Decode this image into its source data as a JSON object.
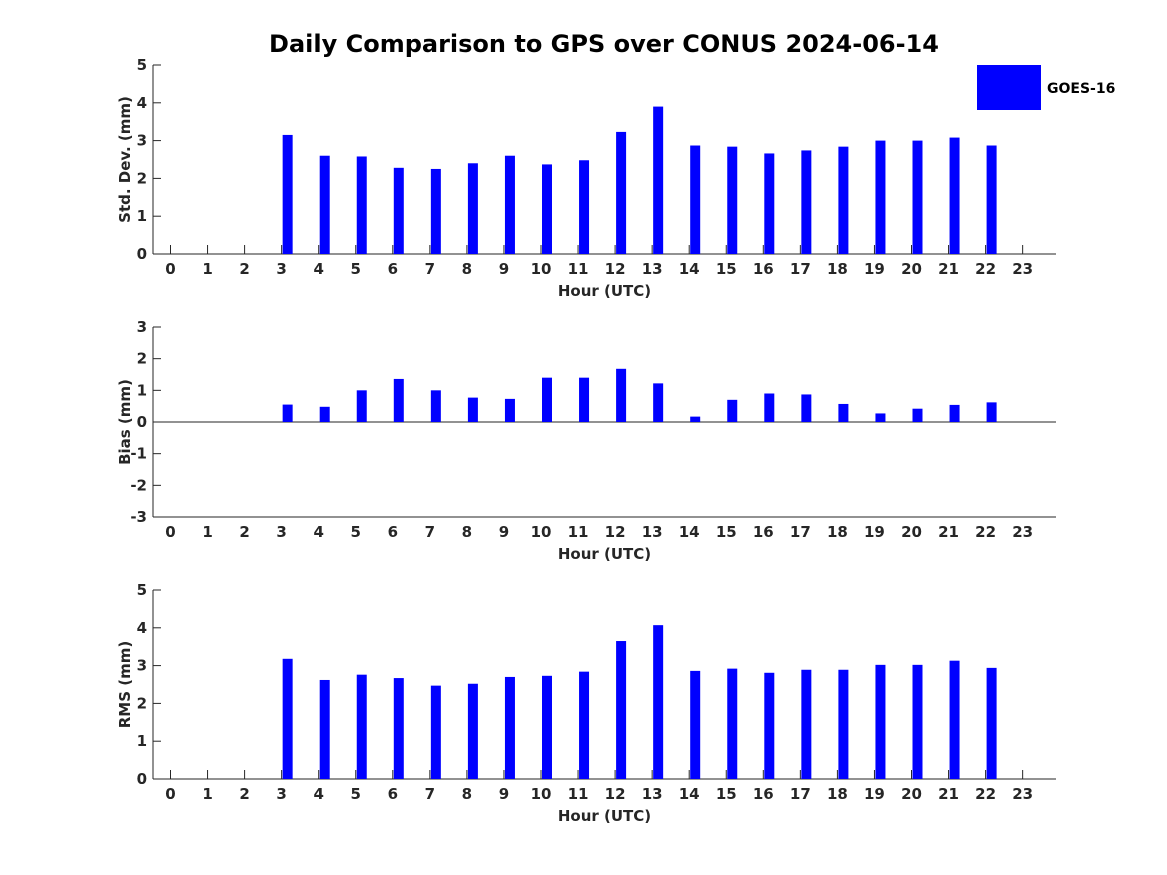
{
  "title": "Daily Comparison to GPS over CONUS 2024-06-14",
  "legend": {
    "label": "GOES-16",
    "color": "#0000ff",
    "placement": "top-right"
  },
  "chart_data": [
    {
      "type": "bar",
      "title": "",
      "xlabel": "Hour (UTC)",
      "ylabel": "Std. Dev. (mm)",
      "categories": [
        0,
        1,
        2,
        3,
        4,
        5,
        6,
        7,
        8,
        9,
        10,
        11,
        12,
        13,
        14,
        15,
        16,
        17,
        18,
        19,
        20,
        21,
        22,
        23
      ],
      "ylim": [
        0,
        5
      ],
      "yticks": [
        0,
        1,
        2,
        3,
        4,
        5
      ],
      "grid": false,
      "series": [
        {
          "name": "GOES-16",
          "values": [
            null,
            null,
            null,
            3.15,
            2.6,
            2.58,
            2.28,
            2.25,
            2.4,
            2.6,
            2.37,
            2.48,
            3.23,
            3.9,
            2.87,
            2.84,
            2.66,
            2.74,
            2.84,
            3.0,
            3.0,
            3.08,
            2.87,
            null
          ]
        }
      ]
    },
    {
      "type": "bar",
      "title": "",
      "xlabel": "Hour (UTC)",
      "ylabel": "Bias (mm)",
      "categories": [
        0,
        1,
        2,
        3,
        4,
        5,
        6,
        7,
        8,
        9,
        10,
        11,
        12,
        13,
        14,
        15,
        16,
        17,
        18,
        19,
        20,
        21,
        22,
        23
      ],
      "ylim": [
        -3,
        3
      ],
      "yticks": [
        -3,
        -2,
        -1,
        0,
        1,
        2,
        3
      ],
      "grid": false,
      "series": [
        {
          "name": "GOES-16",
          "values": [
            null,
            null,
            null,
            0.55,
            0.48,
            1.0,
            1.36,
            1.0,
            0.77,
            0.73,
            1.4,
            1.4,
            1.68,
            1.22,
            0.17,
            0.7,
            0.9,
            0.87,
            0.57,
            0.27,
            0.42,
            0.54,
            0.62,
            null
          ]
        }
      ]
    },
    {
      "type": "bar",
      "title": "",
      "xlabel": "Hour (UTC)",
      "ylabel": "RMS (mm)",
      "categories": [
        0,
        1,
        2,
        3,
        4,
        5,
        6,
        7,
        8,
        9,
        10,
        11,
        12,
        13,
        14,
        15,
        16,
        17,
        18,
        19,
        20,
        21,
        22,
        23
      ],
      "ylim": [
        0,
        5
      ],
      "yticks": [
        0,
        1,
        2,
        3,
        4,
        5
      ],
      "grid": false,
      "series": [
        {
          "name": "GOES-16",
          "values": [
            null,
            null,
            null,
            3.18,
            2.62,
            2.76,
            2.67,
            2.47,
            2.52,
            2.7,
            2.73,
            2.84,
            3.65,
            4.07,
            2.86,
            2.92,
            2.81,
            2.89,
            2.89,
            3.02,
            3.02,
            3.13,
            2.94,
            null
          ]
        }
      ]
    }
  ]
}
